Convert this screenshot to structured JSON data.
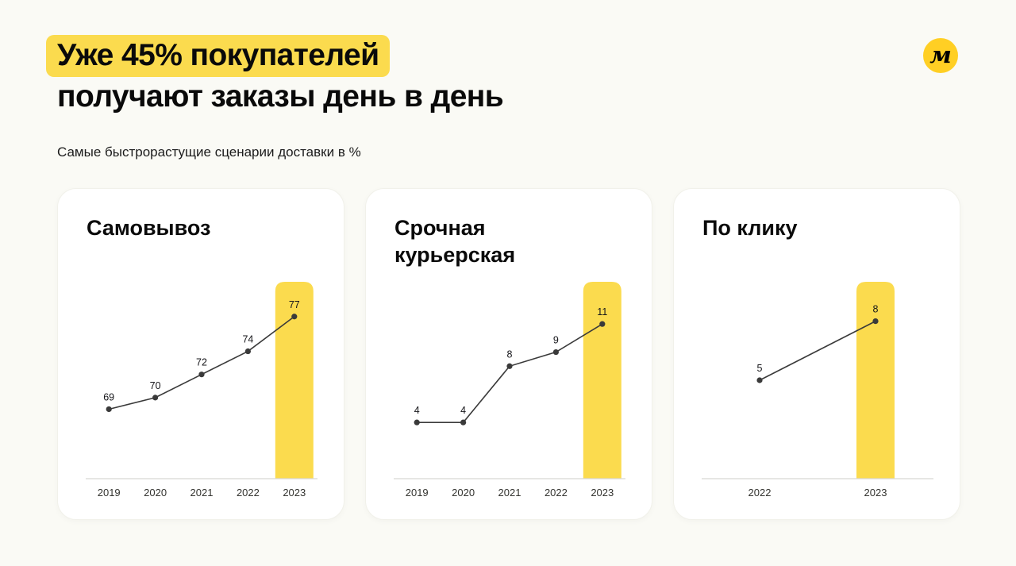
{
  "colors": {
    "highlight": "#fbdb4e",
    "logo": "#ffcf24",
    "line": "#3a3a3a",
    "axis": "#d8d8d4",
    "tick": "#33332f",
    "value_label": "#16161a"
  },
  "logo": {
    "letter": "м"
  },
  "header": {
    "title_highlight": "Уже 45% покупателей",
    "title_rest": "получают заказы день в день",
    "subtitle": "Самые быстрорастущие сценарии доставки в %"
  },
  "chart_data": [
    {
      "type": "line",
      "title": "Самовывоз",
      "categories": [
        "2019",
        "2020",
        "2021",
        "2022",
        "2023"
      ],
      "values": [
        69,
        70,
        72,
        74,
        77
      ],
      "ylim": [
        63,
        80
      ],
      "highlight_category": "2023",
      "unit": "%",
      "grid": false,
      "legend": false
    },
    {
      "type": "line",
      "title": "Срочная курьерская",
      "categories": [
        "2019",
        "2020",
        "2021",
        "2022",
        "2023"
      ],
      "values": [
        4,
        4,
        8,
        9,
        11
      ],
      "ylim": [
        0,
        14
      ],
      "highlight_category": "2023",
      "unit": "%",
      "grid": false,
      "legend": false
    },
    {
      "type": "line",
      "title": "По клику",
      "categories": [
        "2022",
        "2023"
      ],
      "values": [
        5,
        8
      ],
      "ylim": [
        0,
        10
      ],
      "highlight_category": "2023",
      "unit": "%",
      "grid": false,
      "legend": false
    }
  ]
}
